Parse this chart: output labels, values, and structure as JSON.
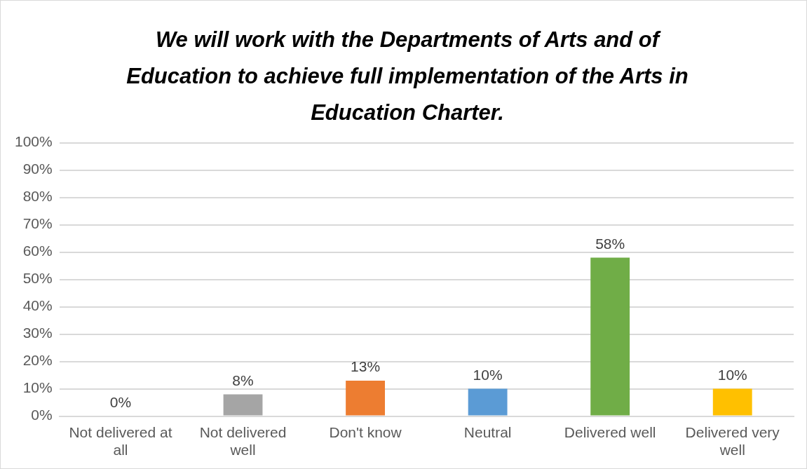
{
  "chart_data": {
    "type": "bar",
    "title": "We will work with the Departments of Arts and of Education to achieve full implementation of the Arts in Education Charter.",
    "categories": [
      "Not delivered at all",
      "Not delivered well",
      "Don't know",
      "Neutral",
      "Delivered well",
      "Delivered very well"
    ],
    "values": [
      0,
      8,
      13,
      10,
      58,
      10
    ],
    "colors": [
      "#4472c4",
      "#a5a5a5",
      "#ed7d31",
      "#5b9bd5",
      "#70ad47",
      "#ffc000"
    ],
    "value_labels": [
      "0%",
      "8%",
      "13%",
      "10%",
      "58%",
      "10%"
    ],
    "ylim": [
      0,
      100
    ],
    "yticks": [
      {
        "value": 0,
        "label": "0%"
      },
      {
        "value": 10,
        "label": "10%"
      },
      {
        "value": 20,
        "label": "20%"
      },
      {
        "value": 30,
        "label": "30%"
      },
      {
        "value": 40,
        "label": "40%"
      },
      {
        "value": 50,
        "label": "50%"
      },
      {
        "value": 60,
        "label": "60%"
      },
      {
        "value": 70,
        "label": "70%"
      },
      {
        "value": 80,
        "label": "80%"
      },
      {
        "value": 90,
        "label": "90%"
      },
      {
        "value": 100,
        "label": "100%"
      }
    ],
    "grid": "y"
  }
}
